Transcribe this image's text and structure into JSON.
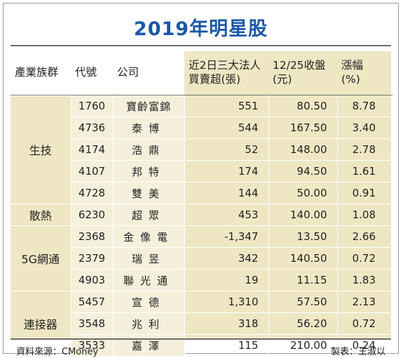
{
  "title": "2019年明星股",
  "headers": {
    "group": "產業族群",
    "code": "代號",
    "company": "公司",
    "net_buy_line1": "近2日三大法人",
    "net_buy_line2": "買賣超(張)",
    "close_line1": "12/25收盤",
    "close_line2": "(元)",
    "change_line1": "漲幅",
    "change_line2": "(%)"
  },
  "groups": [
    {
      "name": "生技",
      "rows": [
        {
          "code": "1760",
          "company": "寶齡富錦",
          "net_buy": "551",
          "close": "80.50",
          "change": "8.78"
        },
        {
          "code": "4736",
          "company": "泰博",
          "net_buy": "544",
          "close": "167.50",
          "change": "3.40"
        },
        {
          "code": "4174",
          "company": "浩鼎",
          "net_buy": "52",
          "close": "148.00",
          "change": "2.78"
        },
        {
          "code": "4107",
          "company": "邦特",
          "net_buy": "174",
          "close": "94.50",
          "change": "1.61"
        },
        {
          "code": "4728",
          "company": "雙美",
          "net_buy": "144",
          "close": "50.00",
          "change": "0.91"
        }
      ]
    },
    {
      "name": "散熱",
      "rows": [
        {
          "code": "6230",
          "company": "超眾",
          "net_buy": "453",
          "close": "140.00",
          "change": "1.08"
        }
      ]
    },
    {
      "name": "5G網通",
      "rows": [
        {
          "code": "2368",
          "company": "金像電",
          "net_buy": "-1,347",
          "close": "13.50",
          "change": "2.66"
        },
        {
          "code": "2379",
          "company": "瑞昱",
          "net_buy": "342",
          "close": "140.50",
          "change": "0.72"
        },
        {
          "code": "4903",
          "company": "聯光通",
          "net_buy": "19",
          "close": "11.15",
          "change": "1.83"
        }
      ]
    },
    {
      "name": "連接器",
      "rows": [
        {
          "code": "5457",
          "company": "宣德",
          "net_buy": "1,310",
          "close": "57.50",
          "change": "2.13"
        },
        {
          "code": "3548",
          "company": "兆利",
          "net_buy": "318",
          "close": "56.20",
          "change": "0.72"
        },
        {
          "code": "3533",
          "company": "嘉澤",
          "net_buy": "115",
          "close": "210.00",
          "change": "0.24"
        }
      ]
    }
  ],
  "footer": {
    "source": "資料來源：CMoney",
    "credit": "製表：王淑以"
  },
  "colors": {
    "title": "#1a58a8",
    "shade": "#efe6c4"
  }
}
